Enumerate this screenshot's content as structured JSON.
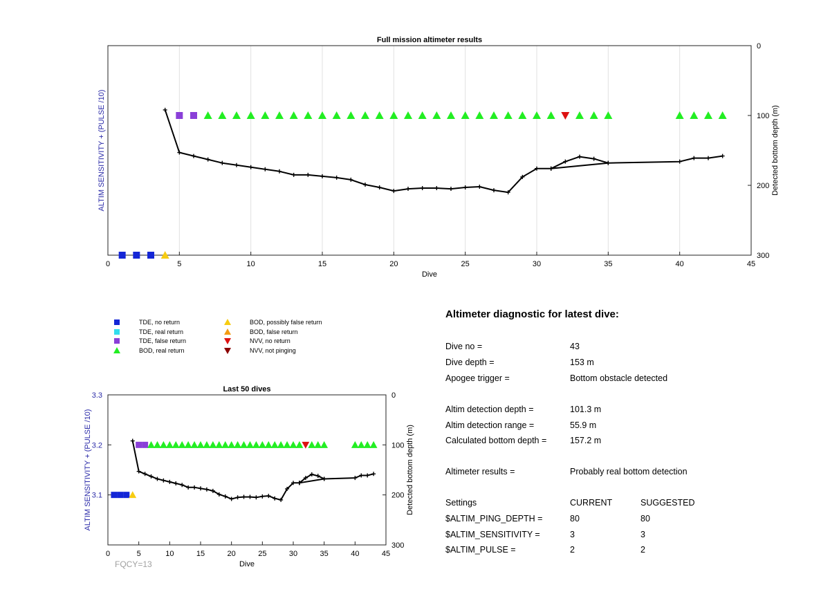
{
  "colors": {
    "tde_no_return": "#1426d6",
    "tde_real_return": "#33ddee",
    "tde_false_return": "#8a3fd8",
    "bod_real_return": "#22ee22",
    "bod_possibly_false": "#f7cc12",
    "bod_false_return": "#f39c12",
    "nvv_no_return": "#dd1111",
    "nvv_not_pinging": "#8b0000",
    "left_axis_text": "#2a2aa8",
    "fqcy_text": "#a0a0a0"
  },
  "legend": {
    "items": [
      {
        "label": "TDE, no return",
        "icon": "square",
        "color_key": "tde_no_return"
      },
      {
        "label": "TDE, real return",
        "icon": "square",
        "color_key": "tde_real_return"
      },
      {
        "label": "TDE, false return",
        "icon": "square",
        "color_key": "tde_false_return"
      },
      {
        "label": "BOD, real return",
        "icon": "triangle-up",
        "color_key": "bod_real_return"
      },
      {
        "label": "BOD, possibly false return",
        "icon": "triangle-up",
        "color_key": "bod_possibly_false"
      },
      {
        "label": "BOD, false return",
        "icon": "triangle-up",
        "color_key": "bod_false_return"
      },
      {
        "label": "NVV, no return",
        "icon": "triangle-down",
        "color_key": "nvv_no_return"
      },
      {
        "label": "NVV, not pinging",
        "icon": "triangle-down",
        "color_key": "nvv_not_pinging"
      }
    ]
  },
  "chart_data": [
    {
      "id": "full",
      "type": "scatter",
      "title": "Full mission altimeter results",
      "xlabel": "Dive",
      "ylabel_left": "ALTIM SENSITIVITY + (PULSE /10)",
      "ylabel_right": "Detected bottom depth (m)",
      "xlim": [
        0,
        45
      ],
      "x_ticks": [
        0,
        5,
        10,
        15,
        20,
        25,
        30,
        35,
        40,
        45
      ],
      "x_grid": true,
      "ylim_right_reversed": [
        0,
        300
      ],
      "right_ticks": [
        0,
        100,
        200,
        300
      ],
      "left_ticks": [],
      "markers": [
        {
          "dive": 1,
          "y": 300,
          "status": "tde_no_return"
        },
        {
          "dive": 2,
          "y": 300,
          "status": "tde_no_return"
        },
        {
          "dive": 3,
          "y": 300,
          "status": "tde_no_return"
        },
        {
          "dive": 4,
          "y": 300,
          "status": "bod_possibly_false"
        },
        {
          "dive": 5,
          "y": 100,
          "status": "tde_false_return"
        },
        {
          "dive": 6,
          "y": 100,
          "status": "tde_false_return"
        },
        {
          "dive": 7,
          "y": 100,
          "status": "bod_real_return"
        },
        {
          "dive": 8,
          "y": 100,
          "status": "bod_real_return"
        },
        {
          "dive": 9,
          "y": 100,
          "status": "bod_real_return"
        },
        {
          "dive": 10,
          "y": 100,
          "status": "bod_real_return"
        },
        {
          "dive": 11,
          "y": 100,
          "status": "bod_real_return"
        },
        {
          "dive": 12,
          "y": 100,
          "status": "bod_real_return"
        },
        {
          "dive": 13,
          "y": 100,
          "status": "bod_real_return"
        },
        {
          "dive": 14,
          "y": 100,
          "status": "bod_real_return"
        },
        {
          "dive": 15,
          "y": 100,
          "status": "bod_real_return"
        },
        {
          "dive": 16,
          "y": 100,
          "status": "bod_real_return"
        },
        {
          "dive": 17,
          "y": 100,
          "status": "bod_real_return"
        },
        {
          "dive": 18,
          "y": 100,
          "status": "bod_real_return"
        },
        {
          "dive": 19,
          "y": 100,
          "status": "bod_real_return"
        },
        {
          "dive": 20,
          "y": 100,
          "status": "bod_real_return"
        },
        {
          "dive": 21,
          "y": 100,
          "status": "bod_real_return"
        },
        {
          "dive": 22,
          "y": 100,
          "status": "bod_real_return"
        },
        {
          "dive": 23,
          "y": 100,
          "status": "bod_real_return"
        },
        {
          "dive": 24,
          "y": 100,
          "status": "bod_real_return"
        },
        {
          "dive": 25,
          "y": 100,
          "status": "bod_real_return"
        },
        {
          "dive": 26,
          "y": 100,
          "status": "bod_real_return"
        },
        {
          "dive": 27,
          "y": 100,
          "status": "bod_real_return"
        },
        {
          "dive": 28,
          "y": 100,
          "status": "bod_real_return"
        },
        {
          "dive": 29,
          "y": 100,
          "status": "bod_real_return"
        },
        {
          "dive": 30,
          "y": 100,
          "status": "bod_real_return"
        },
        {
          "dive": 31,
          "y": 100,
          "status": "bod_real_return"
        },
        {
          "dive": 32,
          "y": 100,
          "status": "nvv_no_return"
        },
        {
          "dive": 33,
          "y": 100,
          "status": "bod_real_return"
        },
        {
          "dive": 34,
          "y": 100,
          "status": "bod_real_return"
        },
        {
          "dive": 35,
          "y": 100,
          "status": "bod_real_return"
        },
        {
          "dive": 40,
          "y": 100,
          "status": "bod_real_return"
        },
        {
          "dive": 41,
          "y": 100,
          "status": "bod_real_return"
        },
        {
          "dive": 42,
          "y": 100,
          "status": "bod_real_return"
        },
        {
          "dive": 43,
          "y": 100,
          "status": "bod_real_return"
        }
      ],
      "depth_line": [
        [
          4,
          92
        ],
        [
          5,
          153
        ],
        [
          6,
          158
        ],
        [
          7,
          163
        ],
        [
          8,
          168
        ],
        [
          9,
          171
        ],
        [
          10,
          174
        ],
        [
          11,
          177
        ],
        [
          12,
          180
        ],
        [
          13,
          185
        ],
        [
          14,
          185
        ],
        [
          15,
          187
        ],
        [
          16,
          189
        ],
        [
          17,
          192
        ],
        [
          18,
          199
        ],
        [
          19,
          203
        ],
        [
          20,
          208
        ],
        [
          21,
          205
        ],
        [
          22,
          204
        ],
        [
          23,
          204
        ],
        [
          24,
          205
        ],
        [
          25,
          203
        ],
        [
          26,
          202
        ],
        [
          27,
          207
        ],
        [
          28,
          210
        ],
        [
          29,
          188
        ],
        [
          30,
          176
        ],
        [
          31,
          176
        ],
        [
          32,
          166
        ],
        [
          33,
          159
        ],
        [
          34,
          162
        ],
        [
          35,
          168
        ],
        [
          31,
          176
        ],
        [
          35,
          168
        ],
        [
          31,
          176
        ],
        [
          35,
          168
        ],
        [
          40,
          166
        ],
        [
          41,
          161
        ],
        [
          42,
          161
        ],
        [
          43,
          158
        ]
      ]
    },
    {
      "id": "last50",
      "type": "scatter",
      "title": "Last 50 dives",
      "xlabel": "Dive",
      "ylabel_left": "ALTIM SENSITIVITY + (PULSE /10)",
      "ylabel_right": "Detected bottom depth (m)",
      "xlim": [
        0,
        45
      ],
      "x_ticks": [
        0,
        5,
        10,
        15,
        20,
        25,
        30,
        35,
        40,
        45
      ],
      "x_grid": false,
      "ylim_right_reversed": [
        0,
        300
      ],
      "right_ticks": [
        0,
        100,
        200,
        300
      ],
      "left_ticks": [
        3.1,
        3.2,
        3.3
      ],
      "annotation": "FQCY=13",
      "markers": [
        {
          "dive": 1,
          "y": 200,
          "status": "tde_no_return"
        },
        {
          "dive": 2,
          "y": 200,
          "status": "tde_no_return"
        },
        {
          "dive": 3,
          "y": 200,
          "status": "tde_no_return"
        },
        {
          "dive": 4,
          "y": 200,
          "status": "bod_possibly_false"
        },
        {
          "dive": 5,
          "y": 100,
          "status": "tde_false_return"
        },
        {
          "dive": 6,
          "y": 100,
          "status": "tde_false_return"
        },
        {
          "dive": 7,
          "y": 100,
          "status": "bod_real_return"
        },
        {
          "dive": 8,
          "y": 100,
          "status": "bod_real_return"
        },
        {
          "dive": 9,
          "y": 100,
          "status": "bod_real_return"
        },
        {
          "dive": 10,
          "y": 100,
          "status": "bod_real_return"
        },
        {
          "dive": 11,
          "y": 100,
          "status": "bod_real_return"
        },
        {
          "dive": 12,
          "y": 100,
          "status": "bod_real_return"
        },
        {
          "dive": 13,
          "y": 100,
          "status": "bod_real_return"
        },
        {
          "dive": 14,
          "y": 100,
          "status": "bod_real_return"
        },
        {
          "dive": 15,
          "y": 100,
          "status": "bod_real_return"
        },
        {
          "dive": 16,
          "y": 100,
          "status": "bod_real_return"
        },
        {
          "dive": 17,
          "y": 100,
          "status": "bod_real_return"
        },
        {
          "dive": 18,
          "y": 100,
          "status": "bod_real_return"
        },
        {
          "dive": 19,
          "y": 100,
          "status": "bod_real_return"
        },
        {
          "dive": 20,
          "y": 100,
          "status": "bod_real_return"
        },
        {
          "dive": 21,
          "y": 100,
          "status": "bod_real_return"
        },
        {
          "dive": 22,
          "y": 100,
          "status": "bod_real_return"
        },
        {
          "dive": 23,
          "y": 100,
          "status": "bod_real_return"
        },
        {
          "dive": 24,
          "y": 100,
          "status": "bod_real_return"
        },
        {
          "dive": 25,
          "y": 100,
          "status": "bod_real_return"
        },
        {
          "dive": 26,
          "y": 100,
          "status": "bod_real_return"
        },
        {
          "dive": 27,
          "y": 100,
          "status": "bod_real_return"
        },
        {
          "dive": 28,
          "y": 100,
          "status": "bod_real_return"
        },
        {
          "dive": 29,
          "y": 100,
          "status": "bod_real_return"
        },
        {
          "dive": 30,
          "y": 100,
          "status": "bod_real_return"
        },
        {
          "dive": 31,
          "y": 100,
          "status": "bod_real_return"
        },
        {
          "dive": 32,
          "y": 100,
          "status": "nvv_no_return"
        },
        {
          "dive": 33,
          "y": 100,
          "status": "bod_real_return"
        },
        {
          "dive": 34,
          "y": 100,
          "status": "bod_real_return"
        },
        {
          "dive": 35,
          "y": 100,
          "status": "bod_real_return"
        },
        {
          "dive": 40,
          "y": 100,
          "status": "bod_real_return"
        },
        {
          "dive": 41,
          "y": 100,
          "status": "bod_real_return"
        },
        {
          "dive": 42,
          "y": 100,
          "status": "bod_real_return"
        },
        {
          "dive": 43,
          "y": 100,
          "status": "bod_real_return"
        }
      ],
      "depth_line": [
        [
          4,
          92
        ],
        [
          5,
          153
        ],
        [
          6,
          158
        ],
        [
          7,
          163
        ],
        [
          8,
          168
        ],
        [
          9,
          171
        ],
        [
          10,
          174
        ],
        [
          11,
          177
        ],
        [
          12,
          180
        ],
        [
          13,
          185
        ],
        [
          14,
          185
        ],
        [
          15,
          187
        ],
        [
          16,
          189
        ],
        [
          17,
          192
        ],
        [
          18,
          199
        ],
        [
          19,
          203
        ],
        [
          20,
          208
        ],
        [
          21,
          205
        ],
        [
          22,
          204
        ],
        [
          23,
          204
        ],
        [
          24,
          205
        ],
        [
          25,
          203
        ],
        [
          26,
          202
        ],
        [
          27,
          207
        ],
        [
          28,
          210
        ],
        [
          29,
          188
        ],
        [
          30,
          176
        ],
        [
          31,
          176
        ],
        [
          32,
          166
        ],
        [
          33,
          159
        ],
        [
          34,
          162
        ],
        [
          35,
          168
        ],
        [
          31,
          176
        ],
        [
          35,
          168
        ],
        [
          31,
          176
        ],
        [
          35,
          168
        ],
        [
          40,
          166
        ],
        [
          41,
          161
        ],
        [
          42,
          161
        ],
        [
          43,
          158
        ]
      ]
    }
  ],
  "diagnostic": {
    "title": "Altimeter diagnostic for latest dive:",
    "dive_no_label": "Dive no =",
    "dive_no_value": "43",
    "dive_depth_label": "Dive depth =",
    "dive_depth_value": "153 m",
    "apogee_trigger_label": "Apogee trigger =",
    "apogee_trigger_value": "Bottom obstacle detected",
    "altim_detection_depth_label": "Altim detection depth =",
    "altim_detection_depth_value": "101.3 m",
    "altim_detection_range_label": "Altim detection range =",
    "altim_detection_range_value": "55.9 m",
    "calculated_bottom_depth_label": "Calculated bottom depth =",
    "calculated_bottom_depth_value": "157.2 m",
    "altimeter_results_label": "Altimeter results =",
    "altimeter_results_value": "Probably real bottom detection",
    "settings_label": "Settings",
    "current_header": "CURRENT",
    "suggested_header": "SUGGESTED",
    "ping_depth_label": "$ALTIM_PING_DEPTH =",
    "ping_depth_current": "80",
    "ping_depth_suggested": "80",
    "sensitivity_label": "$ALTIM_SENSITIVITY =",
    "sensitivity_current": "3",
    "sensitivity_suggested": "3",
    "pulse_label": "$ALTIM_PULSE =",
    "pulse_current": "2",
    "pulse_suggested": "2"
  }
}
